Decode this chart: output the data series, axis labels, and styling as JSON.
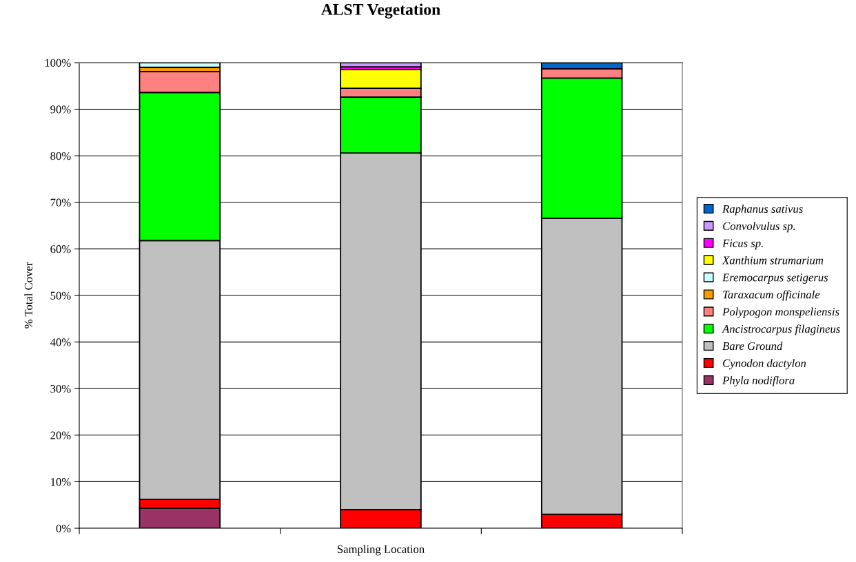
{
  "chart_data": {
    "type": "bar",
    "title": "ALST Vegetation",
    "xlabel": "Sampling Location",
    "ylabel": "% Total Cover",
    "categories": [
      null,
      null,
      null
    ],
    "stacked": true,
    "grid": "y",
    "legend": "right",
    "ylim": [
      0,
      100
    ],
    "yticks": [
      {
        "value": 0,
        "label": "0%"
      },
      {
        "value": 10,
        "label": "10%"
      },
      {
        "value": 20,
        "label": "20%"
      },
      {
        "value": 30,
        "label": "30%"
      },
      {
        "value": 40,
        "label": "40%"
      },
      {
        "value": 50,
        "label": "50%"
      },
      {
        "value": 60,
        "label": "60%"
      },
      {
        "value": 70,
        "label": "70%"
      },
      {
        "value": 80,
        "label": "80%"
      },
      {
        "value": 90,
        "label": "90%"
      },
      {
        "value": 100,
        "label": "100%"
      }
    ],
    "series": [
      {
        "name": "Phyla nodiflora",
        "color": "#993366",
        "values": [
          4.3,
          null,
          null
        ]
      },
      {
        "name": "Cynodon dactylon",
        "color": "#ff0000",
        "values": [
          1.9,
          4.0,
          3.0
        ]
      },
      {
        "name": "Bare Ground",
        "color": "#c0c0c0",
        "values": [
          55.6,
          76.6,
          63.6
        ]
      },
      {
        "name": "Ancistrocarpus filagineus",
        "color": "#00ff00",
        "values": [
          31.8,
          12.0,
          30.1
        ]
      },
      {
        "name": "Polypogon monspeliensis",
        "color": "#ff8080",
        "values": [
          4.5,
          1.9,
          2.0
        ]
      },
      {
        "name": "Taraxacum officinale",
        "color": "#ff9900",
        "values": [
          0.9,
          null,
          null
        ]
      },
      {
        "name": "Eremocarpus setigerus",
        "color": "#ccffff",
        "values": [
          1.0,
          null,
          null
        ]
      },
      {
        "name": "Xanthium strumarium",
        "color": "#ffff00",
        "values": [
          null,
          4.0,
          null
        ]
      },
      {
        "name": "Ficus sp.",
        "color": "#ff00ff",
        "values": [
          null,
          0.6,
          null
        ]
      },
      {
        "name": "Convolvulus sp.",
        "color": "#cc99ff",
        "values": [
          null,
          0.9,
          null
        ]
      },
      {
        "name": "Raphanus sativus",
        "color": "#0066cc",
        "values": [
          null,
          null,
          1.3
        ]
      }
    ]
  }
}
